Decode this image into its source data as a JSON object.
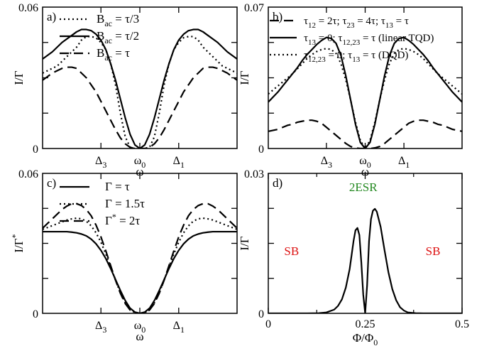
{
  "chart_data": [
    {
      "panel_label": "a)",
      "type": "line",
      "ylabel": "I/Γ",
      "xlabel": "ω",
      "ylim": [
        0,
        0.06
      ],
      "y_tick_labels": [
        "0",
        "0.06"
      ],
      "x_tick_labels": [
        "Δ3",
        "ω0",
        "Δ1"
      ],
      "legend_position": "top-center",
      "x": [
        0,
        0.5,
        1,
        1.5,
        2,
        2.5,
        3,
        3.5,
        4,
        4.5,
        5,
        5.5,
        6,
        6.5,
        7,
        7.5,
        8,
        8.5,
        9,
        9.5,
        10,
        10.5,
        11,
        11.5,
        12,
        12.5,
        13,
        13.5,
        14,
        14.5,
        15,
        15.5,
        16,
        16.5,
        17,
        17.5,
        18,
        18.5,
        19,
        19.5,
        20
      ],
      "series": [
        {
          "name": "Bac = τ/3",
          "style": "dotted",
          "values": [
            0.032,
            0.033,
            0.034,
            0.035,
            0.037,
            0.039,
            0.041,
            0.043,
            0.046,
            0.0475,
            0.0475,
            0.047,
            0.045,
            0.042,
            0.036,
            0.027,
            0.015,
            0.005,
            0.0005,
            0.0,
            0.0,
            0.0,
            0.0005,
            0.005,
            0.015,
            0.027,
            0.036,
            0.042,
            0.045,
            0.047,
            0.0475,
            0.0475,
            0.046,
            0.043,
            0.041,
            0.039,
            0.037,
            0.035,
            0.034,
            0.033,
            0.032
          ]
        },
        {
          "name": "Bac = τ/2",
          "style": "solid",
          "values": [
            0.038,
            0.0395,
            0.041,
            0.043,
            0.045,
            0.0465,
            0.048,
            0.0495,
            0.0505,
            0.0505,
            0.05,
            0.0485,
            0.046,
            0.042,
            0.036,
            0.029,
            0.021,
            0.013,
            0.006,
            0.0015,
            0.0,
            0.0015,
            0.006,
            0.013,
            0.021,
            0.029,
            0.036,
            0.042,
            0.046,
            0.0485,
            0.05,
            0.0505,
            0.0505,
            0.0495,
            0.048,
            0.0465,
            0.045,
            0.043,
            0.041,
            0.0395,
            0.038
          ]
        },
        {
          "name": "Bac = τ",
          "style": "dashed",
          "values": [
            0.029,
            0.0305,
            0.032,
            0.033,
            0.034,
            0.0345,
            0.0345,
            0.034,
            0.032,
            0.03,
            0.027,
            0.024,
            0.02,
            0.016,
            0.012,
            0.008,
            0.0045,
            0.002,
            0.0005,
            0.0,
            0.0,
            0.0,
            0.0005,
            0.002,
            0.0045,
            0.008,
            0.012,
            0.016,
            0.02,
            0.024,
            0.027,
            0.03,
            0.032,
            0.034,
            0.0345,
            0.0345,
            0.034,
            0.033,
            0.032,
            0.0305,
            0.029
          ]
        }
      ]
    },
    {
      "panel_label": "b)",
      "type": "line",
      "ylabel": "I/Γ",
      "xlabel": "ω",
      "ylim": [
        0,
        0.07
      ],
      "y_tick_labels": [
        "0",
        "0.07"
      ],
      "x_tick_labels": [
        "Δ3",
        "ω0",
        "Δ1"
      ],
      "legend_position": "top-center",
      "x": [
        0,
        0.5,
        1,
        1.5,
        2,
        2.5,
        3,
        3.5,
        4,
        4.5,
        5,
        5.5,
        6,
        6.5,
        7,
        7.5,
        8,
        8.5,
        9,
        9.5,
        10,
        10.5,
        11,
        11.5,
        12,
        12.5,
        13,
        13.5,
        14,
        14.5,
        15,
        15.5,
        16,
        16.5,
        17,
        17.5,
        18,
        18.5,
        19,
        19.5,
        20
      ],
      "series": [
        {
          "name": "τ12 = 2τ; τ23 = 4τ; τ13 = τ",
          "style": "dashed",
          "values": [
            0.0085,
            0.009,
            0.0095,
            0.0105,
            0.0115,
            0.012,
            0.013,
            0.0135,
            0.014,
            0.014,
            0.0135,
            0.0125,
            0.0105,
            0.0085,
            0.0065,
            0.0045,
            0.0025,
            0.001,
            0.0003,
            0.0,
            0.0,
            0.0,
            0.0003,
            0.001,
            0.0025,
            0.0045,
            0.0065,
            0.0085,
            0.0105,
            0.0125,
            0.0135,
            0.014,
            0.014,
            0.0135,
            0.013,
            0.012,
            0.0115,
            0.0105,
            0.0095,
            0.009,
            0.0085
          ]
        },
        {
          "name": "τ13 = 0; τ12,23 = τ (linear TQD)",
          "style": "solid",
          "values": [
            0.023,
            0.0255,
            0.028,
            0.031,
            0.034,
            0.037,
            0.04,
            0.0435,
            0.0465,
            0.049,
            0.0515,
            0.0535,
            0.055,
            0.0545,
            0.052,
            0.046,
            0.036,
            0.024,
            0.012,
            0.003,
            0.0,
            0.003,
            0.012,
            0.024,
            0.036,
            0.046,
            0.052,
            0.0545,
            0.055,
            0.0535,
            0.0515,
            0.049,
            0.0465,
            0.0435,
            0.04,
            0.037,
            0.034,
            0.031,
            0.028,
            0.0255,
            0.023
          ]
        },
        {
          "name": "τ12,23 = 0; τ13 = τ (DQD)",
          "style": "dotted",
          "values": [
            0.027,
            0.029,
            0.031,
            0.033,
            0.035,
            0.037,
            0.0395,
            0.042,
            0.0445,
            0.0465,
            0.048,
            0.049,
            0.0495,
            0.049,
            0.047,
            0.042,
            0.034,
            0.024,
            0.013,
            0.004,
            0.0,
            0.004,
            0.013,
            0.024,
            0.034,
            0.042,
            0.047,
            0.049,
            0.0495,
            0.049,
            0.048,
            0.0465,
            0.0445,
            0.042,
            0.0395,
            0.037,
            0.035,
            0.033,
            0.031,
            0.029,
            0.027
          ]
        }
      ]
    },
    {
      "panel_label": "c)",
      "type": "line",
      "ylabel": "I/Γ*",
      "xlabel": "ω",
      "ylim": [
        0,
        0.06
      ],
      "y_tick_labels": [
        "0",
        "0.06"
      ],
      "x_tick_labels": [
        "Δ3",
        "ω0",
        "Δ1"
      ],
      "legend_position": "top-left",
      "x": [
        0,
        0.5,
        1,
        1.5,
        2,
        2.5,
        3,
        3.5,
        4,
        4.5,
        5,
        5.5,
        6,
        6.5,
        7,
        7.5,
        8,
        8.5,
        9,
        9.5,
        10,
        10.5,
        11,
        11.5,
        12,
        12.5,
        13,
        13.5,
        14,
        14.5,
        15,
        15.5,
        16,
        16.5,
        17,
        17.5,
        18,
        18.5,
        19,
        19.5,
        20
      ],
      "series": [
        {
          "name": "Γ = τ",
          "style": "solid",
          "values": [
            0.035,
            0.035,
            0.035,
            0.035,
            0.035,
            0.035,
            0.0348,
            0.0345,
            0.034,
            0.0332,
            0.0318,
            0.0298,
            0.027,
            0.0235,
            0.0192,
            0.0145,
            0.0098,
            0.0055,
            0.0022,
            0.0005,
            0.0,
            0.0005,
            0.0022,
            0.0055,
            0.0098,
            0.0145,
            0.0192,
            0.0235,
            0.027,
            0.0298,
            0.0318,
            0.0332,
            0.034,
            0.0345,
            0.0348,
            0.035,
            0.035,
            0.035,
            0.035,
            0.035,
            0.035
          ]
        },
        {
          "name": "Γ = 1.5τ",
          "style": "dotted",
          "values": [
            0.036,
            0.0368,
            0.0376,
            0.0384,
            0.0392,
            0.04,
            0.0405,
            0.0408,
            0.0405,
            0.0395,
            0.0375,
            0.0345,
            0.0305,
            0.0255,
            0.02,
            0.0142,
            0.0088,
            0.0045,
            0.0016,
            0.0003,
            0.0,
            0.0003,
            0.0016,
            0.0045,
            0.0088,
            0.0142,
            0.02,
            0.0255,
            0.0305,
            0.0345,
            0.0375,
            0.0395,
            0.0405,
            0.0408,
            0.0405,
            0.04,
            0.0392,
            0.0384,
            0.0376,
            0.0368,
            0.036
          ]
        },
        {
          "name": "Γ* = 2τ",
          "style": "dashed",
          "values": [
            0.0365,
            0.0385,
            0.0405,
            0.0425,
            0.0445,
            0.046,
            0.047,
            0.047,
            0.0462,
            0.0445,
            0.0418,
            0.0378,
            0.0328,
            0.0268,
            0.0205,
            0.0142,
            0.0086,
            0.0042,
            0.0014,
            0.0002,
            0.0,
            0.0002,
            0.0014,
            0.0042,
            0.0086,
            0.0142,
            0.0205,
            0.0268,
            0.0328,
            0.0378,
            0.0418,
            0.0445,
            0.0462,
            0.047,
            0.047,
            0.046,
            0.0445,
            0.0425,
            0.0405,
            0.0385,
            0.0365
          ]
        }
      ]
    },
    {
      "panel_label": "d)",
      "type": "line",
      "ylabel": "I/Γ",
      "xlabel": "Φ/Φ0",
      "xlim": [
        0,
        0.5
      ],
      "ylim": [
        0,
        0.03
      ],
      "y_tick_labels": [
        "0",
        "0.03"
      ],
      "x_tick_labels": [
        "0",
        "0.25",
        "0.5"
      ],
      "x_ticks": [
        0,
        0.25,
        0.5
      ],
      "annotations": [
        {
          "text": "SB",
          "x": 0.06,
          "y": 0.0125,
          "color": "#dd1111"
        },
        {
          "text": "2ESR",
          "x": 0.245,
          "y": 0.0262,
          "color": "#22881f"
        },
        {
          "text": "SB",
          "x": 0.425,
          "y": 0.0125,
          "color": "#dd1111"
        }
      ],
      "x": [
        0.0,
        0.05,
        0.1,
        0.13,
        0.15,
        0.17,
        0.18,
        0.19,
        0.2,
        0.21,
        0.215,
        0.22,
        0.225,
        0.23,
        0.235,
        0.24,
        0.245,
        0.25,
        0.255,
        0.26,
        0.265,
        0.27,
        0.275,
        0.28,
        0.29,
        0.3,
        0.31,
        0.32,
        0.33,
        0.34,
        0.35,
        0.36,
        0.38,
        0.4,
        0.45,
        0.5
      ],
      "series": [
        {
          "name": "",
          "style": "solid",
          "values": [
            0.0,
            0.0,
            0.0,
            5e-05,
            0.0002,
            0.0008,
            0.0016,
            0.003,
            0.0055,
            0.0095,
            0.0125,
            0.0155,
            0.0178,
            0.0183,
            0.0168,
            0.011,
            0.004,
            0.0,
            0.006,
            0.0155,
            0.0202,
            0.022,
            0.0224,
            0.0218,
            0.0185,
            0.0135,
            0.0088,
            0.0052,
            0.0028,
            0.0013,
            0.0006,
            0.0002,
            5e-05,
            0.0,
            0.0,
            0.0
          ]
        }
      ]
    }
  ]
}
